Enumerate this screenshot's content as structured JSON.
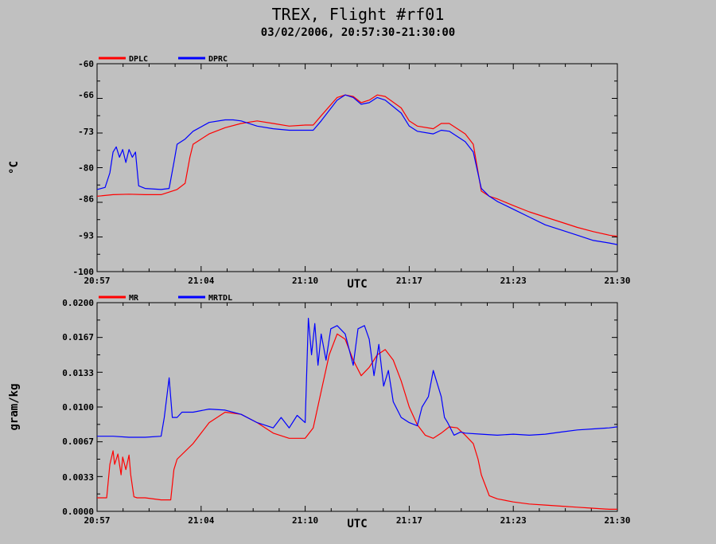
{
  "header": {
    "title": "TREX, Flight #rf01",
    "subtitle": "03/02/2006, 20:57:30-21:30:00"
  },
  "chart_data": [
    {
      "type": "line",
      "xlabel": "UTC",
      "ylabel": "°C",
      "xlim": [
        0,
        32.5
      ],
      "ylim": [
        -100,
        -60
      ],
      "x_ticks": [
        0,
        6.5,
        13,
        19.5,
        26,
        32.5
      ],
      "x_tick_labels": [
        "20:57",
        "21:04",
        "21:10",
        "21:17",
        "21:23",
        "21:30"
      ],
      "y_ticks": [
        -60,
        -66,
        -73,
        -80,
        -86,
        -93,
        -100
      ],
      "y_tick_labels": [
        "-60",
        "-66",
        "-73",
        "-80",
        "-86",
        "-93",
        "-100"
      ],
      "legend_position": "top-left",
      "series": [
        {
          "name": "DPLC",
          "color": "#ff0000",
          "x": [
            0,
            1,
            2,
            3,
            4,
            5,
            5.5,
            5.8,
            6,
            6.5,
            7,
            8,
            9,
            10,
            11,
            12,
            13,
            13.5,
            14,
            15,
            15.5,
            16,
            16.5,
            17,
            17.5,
            18,
            19,
            19.5,
            20,
            21,
            21.5,
            22,
            23,
            23.5,
            24,
            24.5,
            25,
            26,
            27,
            28,
            29,
            30,
            31,
            32,
            32.5
          ],
          "y": [
            -85.5,
            -85.2,
            -85.1,
            -85.2,
            -85.2,
            -84.2,
            -83,
            -78,
            -75.5,
            -74.5,
            -73.5,
            -72.3,
            -71.5,
            -71,
            -71.5,
            -72,
            -71.8,
            -71.8,
            -70,
            -66.5,
            -66,
            -66.3,
            -67.5,
            -67,
            -66,
            -66.3,
            -68.5,
            -71,
            -72,
            -72.5,
            -71.5,
            -71.5,
            -73.5,
            -75.5,
            -84.5,
            -85.5,
            -86,
            -87.3,
            -88.5,
            -89.5,
            -90.5,
            -91.5,
            -92.3,
            -93,
            -93.2
          ]
        },
        {
          "name": "DPRC",
          "color": "#0000ff",
          "x": [
            0,
            0.5,
            0.8,
            1,
            1.2,
            1.4,
            1.6,
            1.8,
            2,
            2.2,
            2.4,
            2.6,
            3,
            4,
            4.5,
            4.8,
            5,
            5.5,
            6,
            7,
            8,
            8.5,
            9,
            10,
            11,
            12,
            13,
            13.5,
            14,
            15,
            15.5,
            16,
            16.5,
            17,
            17.5,
            18,
            19,
            19.5,
            20,
            21,
            21.5,
            22,
            23,
            23.5,
            24,
            24.5,
            25,
            26,
            27,
            28,
            29,
            30,
            31,
            32,
            32.5
          ],
          "y": [
            -84.2,
            -83.8,
            -81,
            -77,
            -76,
            -78,
            -76.5,
            -79,
            -76.5,
            -78,
            -77,
            -83.5,
            -84,
            -84.2,
            -84,
            -79,
            -75.5,
            -74.5,
            -73,
            -71.3,
            -70.8,
            -70.8,
            -71,
            -72,
            -72.5,
            -72.8,
            -72.8,
            -72.8,
            -71,
            -67,
            -66,
            -66.5,
            -67.8,
            -67.5,
            -66.5,
            -67,
            -69.5,
            -72,
            -73,
            -73.5,
            -72.8,
            -73,
            -75,
            -77,
            -84,
            -85.5,
            -86.5,
            -88,
            -89.5,
            -91,
            -92,
            -93,
            -94,
            -94.5,
            -94.8
          ]
        }
      ]
    },
    {
      "type": "line",
      "xlabel": "UTC",
      "ylabel": "gram/kg",
      "xlim": [
        0,
        32.5
      ],
      "ylim": [
        0,
        0.02
      ],
      "x_ticks": [
        0,
        6.5,
        13,
        19.5,
        26,
        32.5
      ],
      "x_tick_labels": [
        "20:57",
        "21:04",
        "21:10",
        "21:17",
        "21:23",
        "21:30"
      ],
      "y_ticks": [
        0.0,
        0.0033,
        0.0067,
        0.01,
        0.0133,
        0.0167,
        0.02
      ],
      "y_tick_labels": [
        "0.0000",
        "0.0033",
        "0.0067",
        "0.0100",
        "0.0133",
        "0.0167",
        "0.0200"
      ],
      "legend_position": "top-left",
      "series": [
        {
          "name": "MR",
          "color": "#ff0000",
          "x": [
            0,
            0.6,
            0.8,
            1.0,
            1.1,
            1.3,
            1.5,
            1.6,
            1.8,
            2.0,
            2.1,
            2.3,
            2.5,
            3,
            4,
            4.6,
            4.8,
            5.0,
            6,
            7,
            8,
            9,
            10,
            11,
            12,
            13,
            13.5,
            14,
            14.5,
            15,
            15.5,
            16,
            16.5,
            17,
            17.5,
            18,
            18.5,
            19,
            19.5,
            20,
            20.5,
            21,
            21.5,
            22,
            22.5,
            23,
            23.5,
            23.8,
            24,
            24.5,
            25,
            26,
            27,
            28,
            29,
            30,
            31,
            32,
            32.5
          ],
          "y": [
            0.0013,
            0.0013,
            0.0045,
            0.0058,
            0.0045,
            0.0055,
            0.0035,
            0.0052,
            0.004,
            0.0054,
            0.0035,
            0.0014,
            0.0013,
            0.0013,
            0.0011,
            0.0011,
            0.004,
            0.005,
            0.0065,
            0.0085,
            0.0095,
            0.0093,
            0.0085,
            0.0075,
            0.007,
            0.007,
            0.008,
            0.0115,
            0.015,
            0.017,
            0.0165,
            0.0145,
            0.013,
            0.0138,
            0.015,
            0.0155,
            0.0145,
            0.0125,
            0.01,
            0.0083,
            0.0073,
            0.007,
            0.0075,
            0.0081,
            0.008,
            0.0073,
            0.0065,
            0.005,
            0.0035,
            0.0015,
            0.0012,
            0.0009,
            0.0007,
            0.0006,
            0.0005,
            0.0004,
            0.0003,
            0.0002,
            0.0002
          ]
        },
        {
          "name": "MRTDL",
          "color": "#0000ff",
          "x": [
            0,
            1,
            2,
            3,
            4,
            4.2,
            4.5,
            4.7,
            5.0,
            5.3,
            6,
            7,
            8,
            9,
            10,
            11,
            11.5,
            12,
            12.5,
            13,
            13.2,
            13.4,
            13.6,
            13.8,
            14.0,
            14.3,
            14.6,
            15,
            15.5,
            16,
            16.3,
            16.7,
            17,
            17.3,
            17.6,
            17.9,
            18.2,
            18.5,
            19,
            19.5,
            20,
            20.3,
            20.7,
            21.0,
            21.5,
            21.7,
            21.9,
            22.3,
            22.7,
            23,
            24,
            25,
            26,
            27,
            28,
            29,
            30,
            31,
            32,
            32.5
          ],
          "y": [
            0.0072,
            0.0072,
            0.0071,
            0.0071,
            0.0072,
            0.009,
            0.0128,
            0.009,
            0.009,
            0.0095,
            0.0095,
            0.0098,
            0.0097,
            0.0093,
            0.0085,
            0.008,
            0.009,
            0.008,
            0.0092,
            0.0085,
            0.0185,
            0.015,
            0.018,
            0.014,
            0.017,
            0.0145,
            0.0175,
            0.0178,
            0.017,
            0.014,
            0.0175,
            0.0178,
            0.0165,
            0.013,
            0.016,
            0.012,
            0.0135,
            0.0105,
            0.009,
            0.0085,
            0.0082,
            0.01,
            0.011,
            0.0135,
            0.011,
            0.009,
            0.0085,
            0.0073,
            0.0076,
            0.0075,
            0.0074,
            0.0073,
            0.0074,
            0.0073,
            0.0074,
            0.0076,
            0.0078,
            0.0079,
            0.008,
            0.0081
          ]
        }
      ]
    }
  ]
}
